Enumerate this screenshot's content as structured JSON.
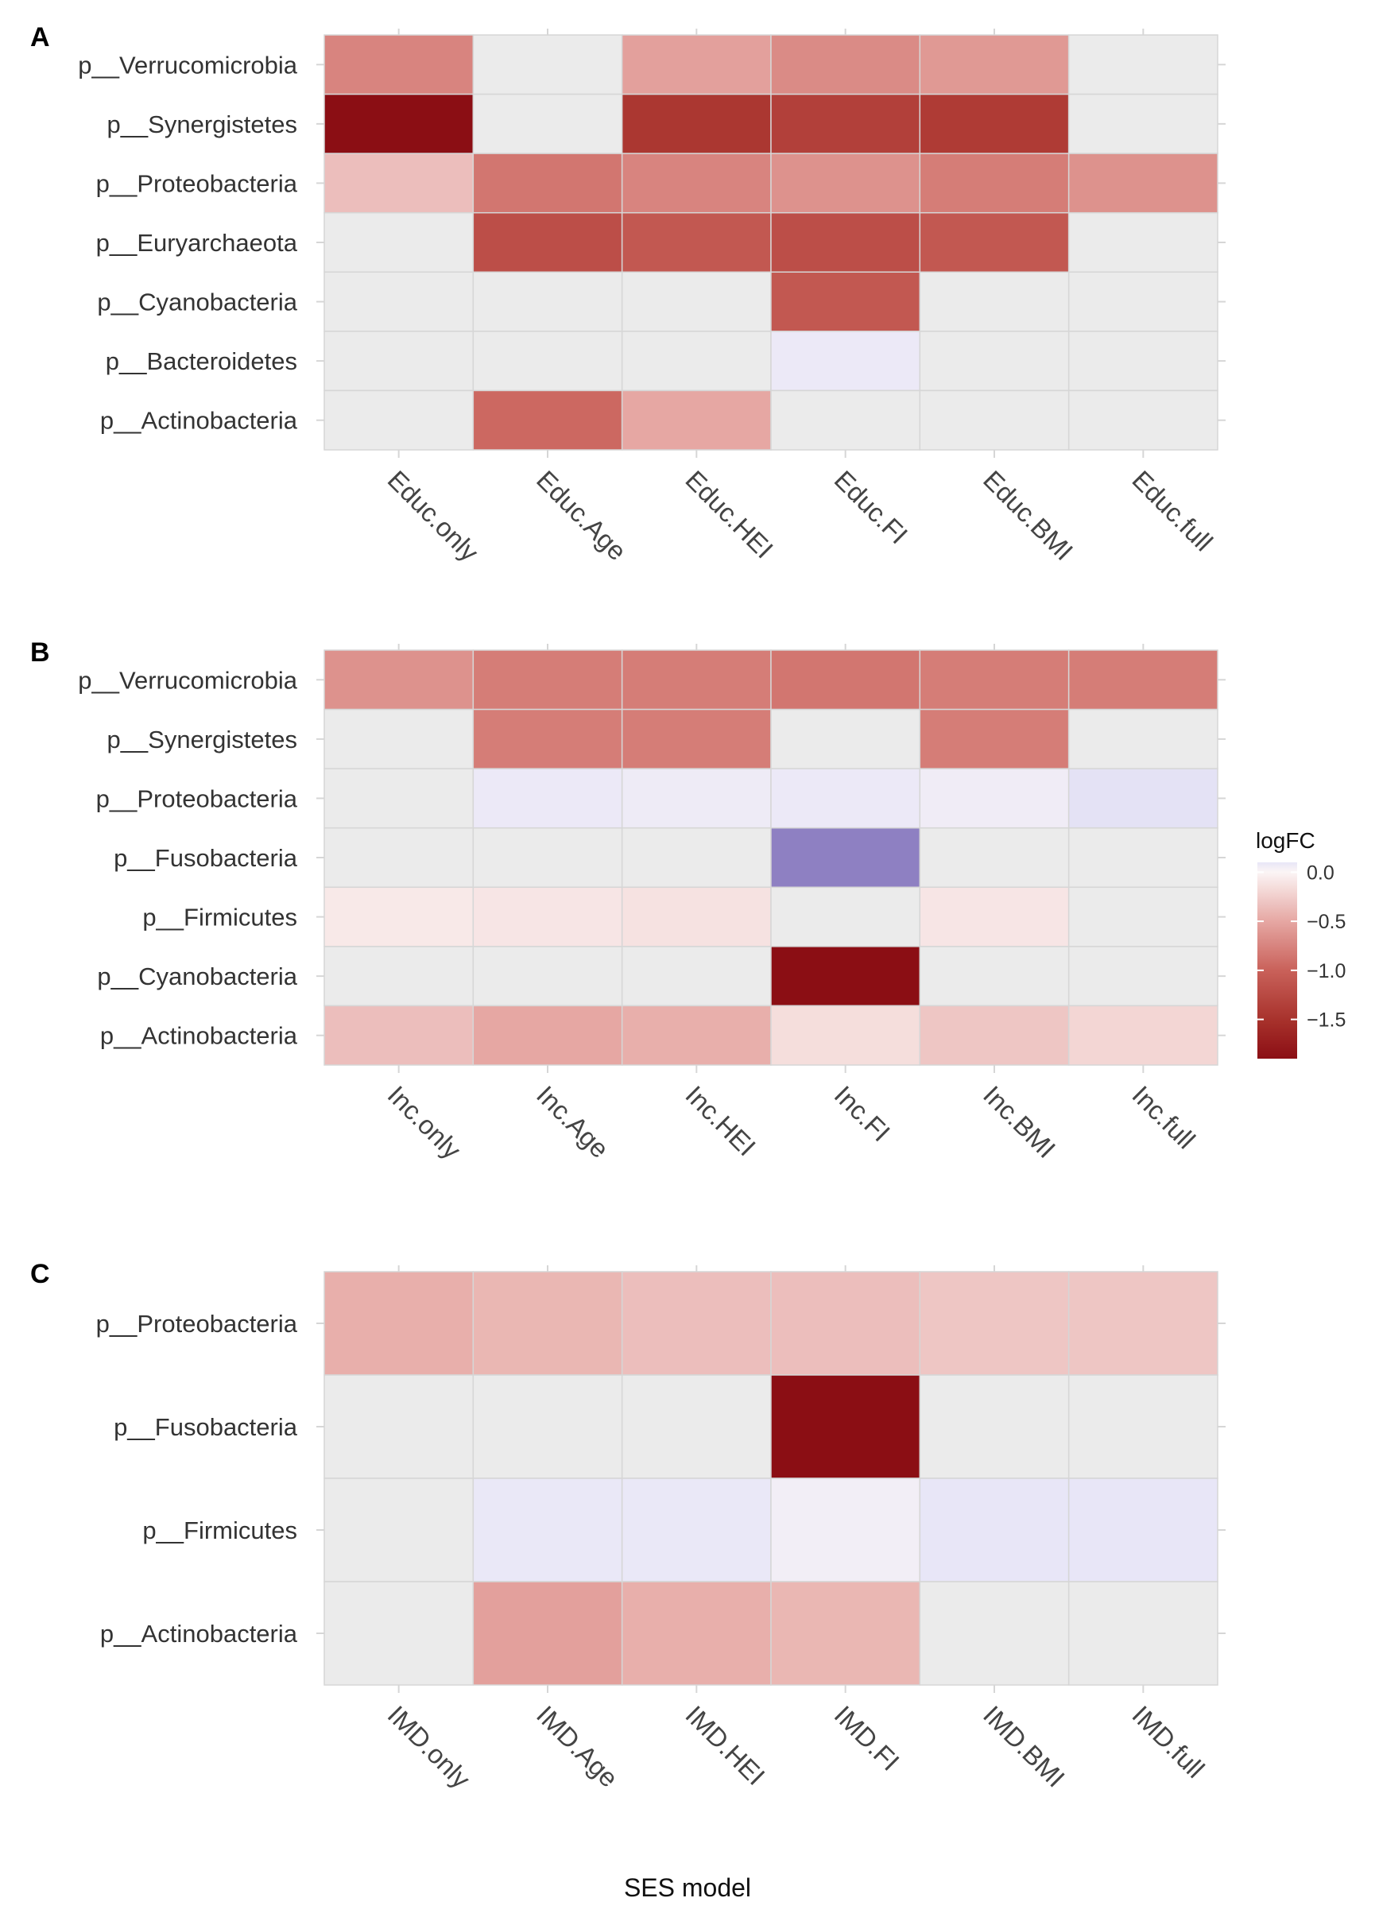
{
  "figure": {
    "xlabel": "SES model"
  },
  "legend": {
    "title": "logFC",
    "ticks": [
      0.0,
      -0.5,
      -1.0,
      -1.5
    ],
    "tick_labels": [
      "0.0",
      "−0.5",
      "−1.0",
      "−1.5"
    ],
    "range": [
      -1.9,
      0.1
    ]
  },
  "colors": {
    "na": "#ebebeb",
    "grid": "#d6d6d6",
    "text": "#333333",
    "stops": [
      {
        "v": -1.9,
        "c": "#8b0e14"
      },
      {
        "v": -1.5,
        "c": "#a8322c"
      },
      {
        "v": -1.0,
        "c": "#c9615a"
      },
      {
        "v": -0.5,
        "c": "#e6a7a3"
      },
      {
        "v": 0.0,
        "c": "#fbf5f5"
      },
      {
        "v": 0.1,
        "c": "#e8e6f7"
      },
      {
        "v": 0.6,
        "c": "#8e80c2"
      }
    ]
  },
  "chart_data": [
    {
      "panel": "A",
      "type": "heatmap",
      "categories": [
        "Educ.only",
        "Educ.Age",
        "Educ.HEI",
        "Educ.FI",
        "Educ.BMI",
        "Educ.full"
      ],
      "rows": [
        "p__Verrucomicrobia",
        "p__Synergistetes",
        "p__Proteobacteria",
        "p__Euryarchaeota",
        "p__Cyanobacteria",
        "p__Bacteroidetes",
        "p__Actinobacteria"
      ],
      "values": [
        [
          -0.75,
          null,
          -0.55,
          -0.7,
          -0.6,
          null
        ],
        [
          -1.9,
          null,
          -1.45,
          -1.35,
          -1.4,
          null
        ],
        [
          -0.35,
          -0.85,
          -0.75,
          -0.65,
          -0.8,
          -0.65
        ],
        [
          null,
          -1.2,
          -1.1,
          -1.2,
          -1.1,
          null
        ],
        [
          null,
          null,
          null,
          -1.1,
          null,
          null
        ],
        [
          null,
          null,
          null,
          0.08,
          null,
          null
        ],
        [
          null,
          -0.95,
          -0.5,
          null,
          null,
          null
        ]
      ]
    },
    {
      "panel": "B",
      "type": "heatmap",
      "categories": [
        "Inc.only",
        "Inc.Age",
        "Inc.HEI",
        "Inc.FI",
        "Inc.BMI",
        "Inc.full"
      ],
      "rows": [
        "p__Verrucomicrobia",
        "p__Synergistetes",
        "p__Proteobacteria",
        "p__Fusobacteria",
        "p__Firmicutes",
        "p__Cyanobacteria",
        "p__Actinobacteria"
      ],
      "values": [
        [
          -0.65,
          -0.8,
          -0.8,
          -0.85,
          -0.8,
          -0.8
        ],
        [
          null,
          -0.8,
          -0.8,
          null,
          -0.8,
          null
        ],
        [
          null,
          0.08,
          0.07,
          0.08,
          0.06,
          0.12
        ],
        [
          null,
          null,
          null,
          0.6,
          null,
          null
        ],
        [
          -0.08,
          -0.1,
          -0.12,
          null,
          -0.1,
          null
        ],
        [
          null,
          null,
          null,
          -1.9,
          null,
          null
        ],
        [
          -0.35,
          -0.5,
          -0.45,
          -0.15,
          -0.3,
          -0.2
        ]
      ]
    },
    {
      "panel": "C",
      "type": "heatmap",
      "categories": [
        "IMD.only",
        "IMD.Age",
        "IMD.HEI",
        "IMD.FI",
        "IMD.BMI",
        "IMD.full"
      ],
      "rows": [
        "p__Proteobacteria",
        "p__Fusobacteria",
        "p__Firmicutes",
        "p__Actinobacteria"
      ],
      "values": [
        [
          -0.45,
          -0.4,
          -0.35,
          -0.35,
          -0.3,
          -0.3
        ],
        [
          null,
          null,
          null,
          -1.9,
          null,
          null
        ],
        [
          null,
          0.09,
          0.09,
          0.05,
          0.1,
          0.1
        ],
        [
          null,
          -0.55,
          -0.45,
          -0.4,
          null,
          null
        ]
      ]
    }
  ]
}
